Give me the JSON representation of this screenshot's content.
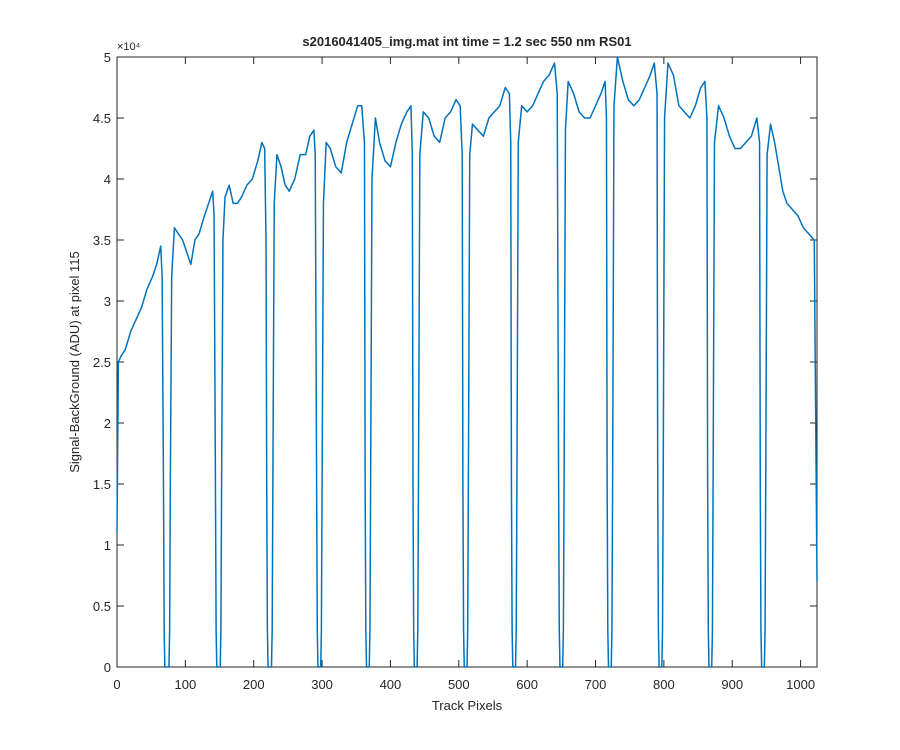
{
  "chart_data": {
    "type": "line",
    "title": "s2016041405_img.mat int time = 1.2 sec  550 nm RS01",
    "x_label": "Track Pixels",
    "y_label": "Signal-BackGround (ADU) at pixel 115",
    "y_multiplier": "×10⁴",
    "xlim": [
      0,
      1024
    ],
    "xticks": [
      0,
      100,
      200,
      300,
      400,
      500,
      600,
      700,
      800,
      900,
      1000
    ],
    "ylim": [
      0,
      5
    ],
    "yticks": [
      0,
      0.5,
      1,
      1.5,
      2,
      2.5,
      3,
      3.5,
      4,
      4.5,
      5
    ],
    "grid": false,
    "series": [
      {
        "color": "#0072bd",
        "x": [
          0,
          2,
          6,
          12,
          20,
          28,
          36,
          44,
          52,
          58,
          64,
          66,
          68,
          69,
          70,
          76,
          77,
          78,
          80,
          84,
          90,
          96,
          102,
          108,
          114,
          120,
          128,
          134,
          140,
          142,
          144,
          145,
          146,
          151,
          152,
          153,
          155,
          158,
          164,
          170,
          176,
          182,
          190,
          198,
          206,
          212,
          216,
          218,
          219,
          220,
          221,
          226,
          227,
          228,
          230,
          234,
          240,
          246,
          252,
          260,
          268,
          276,
          282,
          288,
          290,
          292,
          293,
          294,
          298,
          299,
          300,
          302,
          306,
          312,
          320,
          328,
          336,
          344,
          352,
          358,
          362,
          363,
          364,
          365,
          369,
          370,
          371,
          373,
          378,
          384,
          392,
          400,
          408,
          416,
          424,
          430,
          432,
          433,
          434,
          435,
          439,
          440,
          441,
          443,
          448,
          456,
          464,
          472,
          480,
          488,
          496,
          502,
          505,
          506,
          507,
          508,
          512,
          513,
          514,
          516,
          520,
          528,
          536,
          544,
          552,
          560,
          568,
          574,
          576,
          577,
          578,
          579,
          583,
          584,
          585,
          587,
          592,
          600,
          608,
          616,
          624,
          632,
          640,
          644,
          646,
          647,
          648,
          652,
          653,
          654,
          656,
          660,
          668,
          676,
          684,
          692,
          700,
          708,
          714,
          716,
          717,
          718,
          719,
          723,
          724,
          725,
          727,
          732,
          740,
          748,
          756,
          764,
          772,
          780,
          786,
          790,
          791,
          792,
          793,
          797,
          798,
          799,
          801,
          806,
          814,
          822,
          830,
          838,
          846,
          854,
          860,
          863,
          864,
          865,
          866,
          870,
          871,
          872,
          874,
          880,
          888,
          896,
          904,
          912,
          920,
          928,
          936,
          940,
          941,
          942,
          943,
          947,
          948,
          949,
          951,
          956,
          962,
          968,
          974,
          980,
          988,
          996,
          1004,
          1012,
          1020,
          1024
        ],
        "values": [
          1.1,
          2.5,
          2.55,
          2.6,
          2.75,
          2.85,
          2.95,
          3.1,
          3.2,
          3.3,
          3.45,
          3.2,
          1.5,
          0.3,
          0,
          0,
          0.3,
          1.5,
          3.2,
          3.6,
          3.55,
          3.5,
          3.4,
          3.3,
          3.5,
          3.55,
          3.7,
          3.8,
          3.9,
          3.7,
          1.5,
          0.3,
          0,
          0,
          0.3,
          1.5,
          3.5,
          3.85,
          3.95,
          3.8,
          3.8,
          3.85,
          3.95,
          4.0,
          4.15,
          4.3,
          4.25,
          3.5,
          1.5,
          0.3,
          0,
          0,
          0.3,
          1.5,
          3.8,
          4.2,
          4.1,
          3.95,
          3.9,
          4.0,
          4.2,
          4.2,
          4.35,
          4.4,
          4.2,
          1.5,
          0.3,
          0,
          0,
          0.3,
          1.5,
          3.8,
          4.3,
          4.25,
          4.1,
          4.05,
          4.3,
          4.45,
          4.6,
          4.6,
          4.3,
          1.5,
          0.3,
          0,
          0,
          0.3,
          1.5,
          4.0,
          4.5,
          4.3,
          4.15,
          4.1,
          4.3,
          4.45,
          4.55,
          4.6,
          4.2,
          1.5,
          0.3,
          0,
          0,
          0.3,
          1.5,
          4.2,
          4.55,
          4.5,
          4.35,
          4.3,
          4.5,
          4.55,
          4.65,
          4.6,
          4.2,
          1.5,
          0.3,
          0,
          0,
          0.3,
          1.5,
          4.2,
          4.45,
          4.4,
          4.35,
          4.5,
          4.55,
          4.6,
          4.75,
          4.7,
          4.3,
          1.5,
          0.3,
          0,
          0,
          0.3,
          1.5,
          4.3,
          4.6,
          4.55,
          4.6,
          4.7,
          4.8,
          4.85,
          4.95,
          4.7,
          1.5,
          0.3,
          0,
          0,
          0.3,
          1.5,
          4.4,
          4.8,
          4.7,
          4.55,
          4.5,
          4.5,
          4.6,
          4.7,
          4.8,
          4.5,
          1.5,
          0.3,
          0,
          0,
          0.3,
          1.5,
          4.6,
          5.0,
          4.8,
          4.65,
          4.6,
          4.65,
          4.75,
          4.85,
          4.95,
          4.7,
          1.5,
          0.3,
          0,
          0,
          0.3,
          1.5,
          4.5,
          4.95,
          4.85,
          4.6,
          4.55,
          4.5,
          4.6,
          4.75,
          4.8,
          4.5,
          1.5,
          0.3,
          0,
          0,
          0.3,
          1.5,
          4.3,
          4.6,
          4.5,
          4.35,
          4.25,
          4.25,
          4.3,
          4.35,
          4.5,
          4.3,
          1.5,
          0.3,
          0,
          0,
          0.3,
          1.5,
          4.2,
          4.45,
          4.3,
          4.1,
          3.9,
          3.8,
          3.75,
          3.7,
          3.6,
          3.55,
          3.5,
          0.7
        ]
      }
    ]
  }
}
